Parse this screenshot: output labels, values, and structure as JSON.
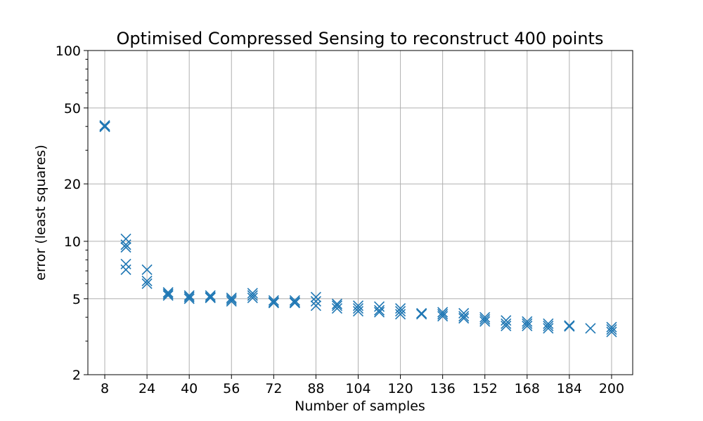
{
  "chart_data": {
    "type": "scatter",
    "title": "Optimised Compressed Sensing to reconstruct 400 points",
    "xlabel": "Number of samples",
    "ylabel": "error (least squares)",
    "y_scale": "log",
    "xlim": [
      1.6,
      208
    ],
    "ylim": [
      2,
      100
    ],
    "xticks": [
      8,
      24,
      40,
      56,
      72,
      88,
      104,
      120,
      136,
      152,
      168,
      184,
      200
    ],
    "yticks": [
      2,
      5,
      10,
      20,
      50,
      100
    ],
    "grid": true,
    "marker": "x",
    "color": "#1f77b4",
    "series": [
      {
        "points": [
          [
            8,
            40.5
          ],
          [
            8,
            40.0
          ],
          [
            8,
            39.8
          ],
          [
            16,
            10.3
          ],
          [
            16,
            9.6
          ],
          [
            16,
            9.3
          ],
          [
            16,
            7.6
          ],
          [
            16,
            7.1
          ],
          [
            24,
            7.1
          ],
          [
            24,
            6.2
          ],
          [
            24,
            6.0
          ],
          [
            32,
            5.4
          ],
          [
            32,
            5.3
          ],
          [
            32,
            5.2
          ],
          [
            40,
            5.2
          ],
          [
            40,
            5.1
          ],
          [
            40,
            5.0
          ],
          [
            48,
            5.2
          ],
          [
            48,
            5.1
          ],
          [
            48,
            5.05
          ],
          [
            56,
            5.05
          ],
          [
            56,
            4.95
          ],
          [
            56,
            4.85
          ],
          [
            64,
            5.35
          ],
          [
            64,
            5.2
          ],
          [
            64,
            5.05
          ],
          [
            72,
            4.9
          ],
          [
            72,
            4.8
          ],
          [
            72,
            4.75
          ],
          [
            80,
            4.9
          ],
          [
            80,
            4.8
          ],
          [
            80,
            4.75
          ],
          [
            88,
            5.1
          ],
          [
            88,
            4.85
          ],
          [
            88,
            4.6
          ],
          [
            96,
            4.7
          ],
          [
            96,
            4.6
          ],
          [
            96,
            4.45
          ],
          [
            104,
            4.6
          ],
          [
            104,
            4.45
          ],
          [
            104,
            4.3
          ],
          [
            112,
            4.55
          ],
          [
            112,
            4.35
          ],
          [
            112,
            4.25
          ],
          [
            120,
            4.45
          ],
          [
            120,
            4.3
          ],
          [
            120,
            4.15
          ],
          [
            128,
            4.2
          ],
          [
            128,
            4.15
          ],
          [
            136,
            4.25
          ],
          [
            136,
            4.15
          ],
          [
            136,
            4.05
          ],
          [
            144,
            4.2
          ],
          [
            144,
            4.05
          ],
          [
            144,
            3.95
          ],
          [
            152,
            4.0
          ],
          [
            152,
            3.9
          ],
          [
            152,
            3.8
          ],
          [
            160,
            3.85
          ],
          [
            160,
            3.7
          ],
          [
            160,
            3.6
          ],
          [
            168,
            3.8
          ],
          [
            168,
            3.7
          ],
          [
            168,
            3.6
          ],
          [
            176,
            3.7
          ],
          [
            176,
            3.6
          ],
          [
            176,
            3.5
          ],
          [
            184,
            3.62
          ],
          [
            184,
            3.58
          ],
          [
            192,
            3.5
          ],
          [
            200,
            3.55
          ],
          [
            200,
            3.45
          ],
          [
            200,
            3.35
          ]
        ]
      }
    ]
  }
}
